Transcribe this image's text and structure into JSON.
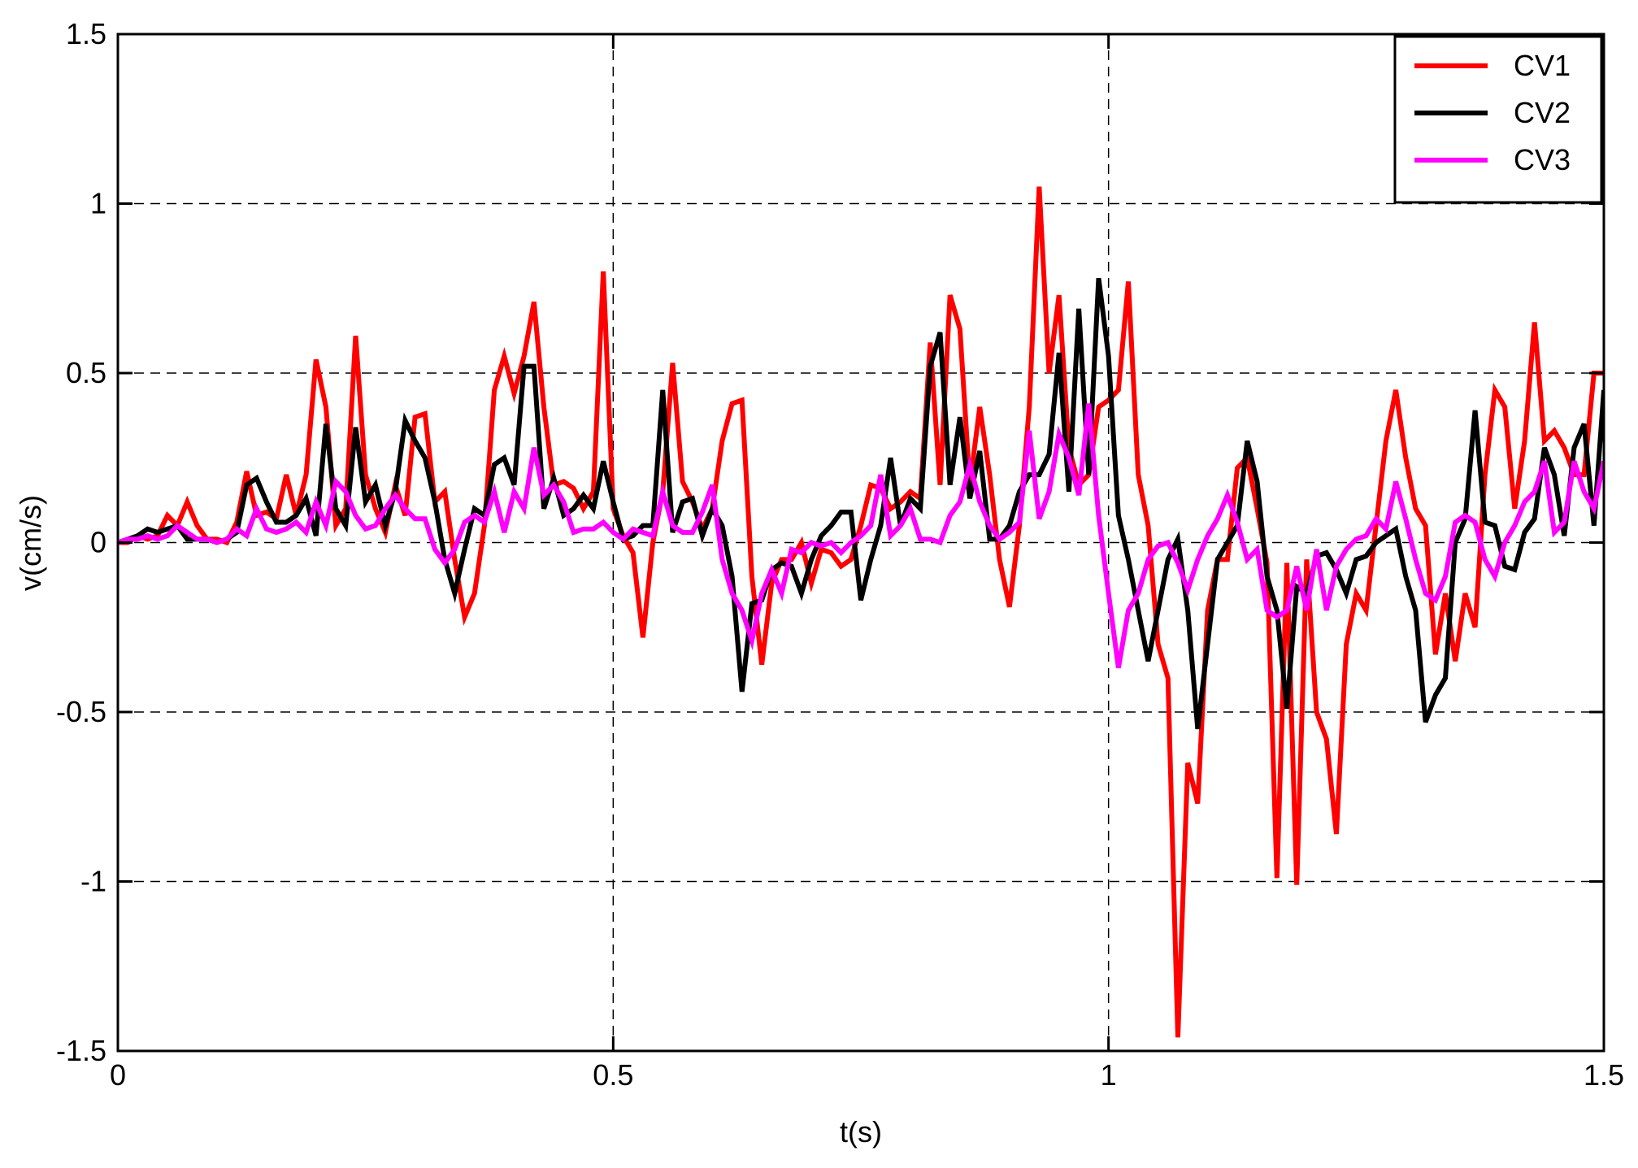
{
  "chart_data": {
    "type": "line",
    "xlabel": "t(s)",
    "ylabel": "v(cm/s)",
    "x": [
      0,
      0.01,
      0.02,
      0.03,
      0.04,
      0.05,
      0.06,
      0.07,
      0.08,
      0.09,
      0.1,
      0.11,
      0.12,
      0.13,
      0.14,
      0.15,
      0.16,
      0.17,
      0.18,
      0.19,
      0.2,
      0.21,
      0.22,
      0.23,
      0.24,
      0.25,
      0.26,
      0.27,
      0.28,
      0.29,
      0.3,
      0.31,
      0.32,
      0.33,
      0.34,
      0.35,
      0.36,
      0.37,
      0.38,
      0.39,
      0.4,
      0.41,
      0.42,
      0.43,
      0.44,
      0.45,
      0.46,
      0.47,
      0.48,
      0.49,
      0.5,
      0.51,
      0.52,
      0.53,
      0.54,
      0.55,
      0.56,
      0.57,
      0.58,
      0.59,
      0.6,
      0.61,
      0.62,
      0.63,
      0.64,
      0.65,
      0.66,
      0.67,
      0.68,
      0.69,
      0.7,
      0.71,
      0.72,
      0.73,
      0.74,
      0.75,
      0.76,
      0.77,
      0.78,
      0.79,
      0.8,
      0.81,
      0.82,
      0.83,
      0.84,
      0.85,
      0.86,
      0.87,
      0.88,
      0.89,
      0.9,
      0.91,
      0.92,
      0.93,
      0.94,
      0.95,
      0.96,
      0.97,
      0.98,
      0.99,
      1,
      1.01,
      1.02,
      1.03,
      1.04,
      1.05,
      1.06,
      1.07,
      1.08,
      1.09,
      1.1,
      1.11,
      1.12,
      1.13,
      1.14,
      1.15,
      1.16,
      1.17,
      1.18,
      1.19,
      1.2,
      1.21,
      1.22,
      1.23,
      1.24,
      1.25,
      1.26,
      1.27,
      1.28,
      1.29,
      1.3,
      1.31,
      1.32,
      1.33,
      1.34,
      1.35,
      1.36,
      1.37,
      1.38,
      1.39,
      1.4,
      1.41,
      1.42,
      1.43,
      1.44,
      1.45,
      1.46,
      1.47,
      1.48,
      1.49,
      1.5
    ],
    "series": [
      {
        "name": "CV1",
        "color": "#ff0000",
        "values": [
          0,
          0,
          0.02,
          0.01,
          0.02,
          0.08,
          0.05,
          0.12,
          0.05,
          0.01,
          0.01,
          0,
          0.06,
          0.21,
          0.08,
          0.09,
          0.07,
          0.2,
          0.08,
          0.2,
          0.54,
          0.4,
          0.05,
          0.1,
          0.61,
          0.2,
          0.1,
          0.03,
          0.17,
          0.08,
          0.37,
          0.38,
          0.12,
          0.15,
          -0.05,
          -0.22,
          -0.15,
          0.05,
          0.45,
          0.55,
          0.44,
          0.55,
          0.71,
          0.4,
          0.17,
          0.18,
          0.16,
          0.1,
          0.15,
          0.8,
          0.1,
          0.02,
          -0.03,
          -0.28,
          0,
          0.15,
          0.53,
          0.18,
          0.12,
          0.04,
          0.1,
          0.3,
          0.41,
          0.42,
          -0.1,
          -0.36,
          -0.12,
          -0.05,
          -0.05,
          0,
          -0.12,
          -0.02,
          -0.03,
          -0.07,
          -0.05,
          0.05,
          0.17,
          0.16,
          0.1,
          0.12,
          0.15,
          0.13,
          0.59,
          0.17,
          0.73,
          0.63,
          0.17,
          0.4,
          0.2,
          -0.05,
          -0.19,
          0.05,
          0.4,
          1.05,
          0.5,
          0.73,
          0.28,
          0.17,
          0.2,
          0.4,
          0.42,
          0.45,
          0.77,
          0.2,
          0.05,
          -0.3,
          -0.4,
          -1.46,
          -0.65,
          -0.77,
          -0.2,
          -0.05,
          -0.05,
          0.22,
          0.25,
          0.1,
          -0.06,
          -0.99,
          -0.06,
          -1.01,
          -0.05,
          -0.5,
          -0.58,
          -0.86,
          -0.3,
          -0.15,
          -0.2,
          0.05,
          0.3,
          0.45,
          0.25,
          0.1,
          0.05,
          -0.33,
          -0.15,
          -0.35,
          -0.15,
          -0.25,
          0.2,
          0.45,
          0.4,
          0.1,
          0.3,
          0.65,
          0.3,
          0.33,
          0.28,
          0.2,
          0.2,
          0.5,
          0.5
        ]
      },
      {
        "name": "CV2",
        "color": "#000000",
        "values": [
          0,
          0.01,
          0.02,
          0.04,
          0.03,
          0.04,
          0.05,
          0.01,
          0.01,
          0.01,
          0,
          0.01,
          0.03,
          0.17,
          0.19,
          0.12,
          0.06,
          0.06,
          0.08,
          0.13,
          0.02,
          0.35,
          0.1,
          0.05,
          0.34,
          0.12,
          0.17,
          0.05,
          0.15,
          0.36,
          0.3,
          0.25,
          0.12,
          -0.05,
          -0.15,
          -0.02,
          0.1,
          0.08,
          0.23,
          0.25,
          0.17,
          0.52,
          0.52,
          0.1,
          0.19,
          0.08,
          0.1,
          0.14,
          0.1,
          0.24,
          0.12,
          0.01,
          0.02,
          0.05,
          0.05,
          0.45,
          0.03,
          0.12,
          0.13,
          0.02,
          0.1,
          0.05,
          -0.1,
          -0.44,
          -0.18,
          -0.17,
          -0.08,
          -0.06,
          -0.07,
          -0.15,
          -0.05,
          0.02,
          0.05,
          0.09,
          0.09,
          -0.17,
          -0.05,
          0.05,
          0.25,
          0.05,
          0.13,
          0.1,
          0.52,
          0.62,
          0.17,
          0.37,
          0.13,
          0.27,
          0.01,
          0.01,
          0.05,
          0.15,
          0.2,
          0.2,
          0.26,
          0.56,
          0.15,
          0.69,
          0.2,
          0.78,
          0.55,
          0.08,
          -0.05,
          -0.2,
          -0.35,
          -0.2,
          -0.05,
          0.01,
          -0.2,
          -0.55,
          -0.3,
          -0.05,
          0,
          0.05,
          0.3,
          0.18,
          -0.1,
          -0.2,
          -0.49,
          -0.13,
          -0.15,
          -0.04,
          -0.03,
          -0.08,
          -0.15,
          -0.05,
          -0.04,
          0,
          0.02,
          0.04,
          -0.1,
          -0.2,
          -0.53,
          -0.45,
          -0.4,
          0,
          0.07,
          0.39,
          0.06,
          0.05,
          -0.07,
          -0.08,
          0.03,
          0.07,
          0.28,
          0.2,
          0.02,
          0.28,
          0.35,
          0.05,
          0.45
        ]
      },
      {
        "name": "CV3",
        "color": "#ff00ff",
        "values": [
          0,
          0.01,
          0.01,
          0.02,
          0.01,
          0.02,
          0.05,
          0.03,
          0.01,
          0.01,
          0,
          0.01,
          0.04,
          0.02,
          0.1,
          0.04,
          0.03,
          0.04,
          0.06,
          0.03,
          0.12,
          0.05,
          0.18,
          0.15,
          0.08,
          0.04,
          0.05,
          0.1,
          0.14,
          0.1,
          0.07,
          0.07,
          -0.02,
          -0.06,
          -0.02,
          0.06,
          0.08,
          0.06,
          0.15,
          0.03,
          0.15,
          0.1,
          0.28,
          0.14,
          0.17,
          0.12,
          0.03,
          0.04,
          0.04,
          0.06,
          0.03,
          0.01,
          0.04,
          0.03,
          0.02,
          0.15,
          0.05,
          0.03,
          0.03,
          0.09,
          0.17,
          -0.05,
          -0.15,
          -0.2,
          -0.29,
          -0.15,
          -0.08,
          -0.15,
          -0.02,
          -0.03,
          0,
          -0.01,
          0,
          -0.03,
          0,
          0.02,
          0.05,
          0.2,
          0.02,
          0.05,
          0.1,
          0.01,
          0.01,
          0,
          0.08,
          0.12,
          0.23,
          0.12,
          0.05,
          0.01,
          0.03,
          0.06,
          0.33,
          0.07,
          0.15,
          0.32,
          0.25,
          0.14,
          0.41,
          0.08,
          -0.15,
          -0.37,
          -0.2,
          -0.15,
          -0.05,
          -0.01,
          0,
          -0.06,
          -0.14,
          -0.05,
          0.02,
          0.07,
          0.14,
          0.06,
          -0.05,
          -0.02,
          -0.2,
          -0.22,
          -0.2,
          -0.07,
          -0.2,
          -0.02,
          -0.2,
          -0.07,
          -0.02,
          0.01,
          0.02,
          0.07,
          0.04,
          0.18,
          0.07,
          -0.05,
          -0.15,
          -0.17,
          -0.1,
          0.06,
          0.08,
          0.06,
          -0.05,
          -0.1,
          0,
          0.05,
          0.12,
          0.15,
          0.24,
          0.03,
          0.06,
          0.24,
          0.15,
          0.1,
          0.24
        ]
      }
    ],
    "xlim": [
      0,
      1.5
    ],
    "xticks": [
      0,
      0.5,
      1,
      1.5
    ],
    "ylim": [
      -1.5,
      1.5
    ],
    "yticks": [
      -1.5,
      -1,
      -0.5,
      0,
      0.5,
      1,
      1.5
    ],
    "grid": true,
    "legend": "northeast"
  }
}
